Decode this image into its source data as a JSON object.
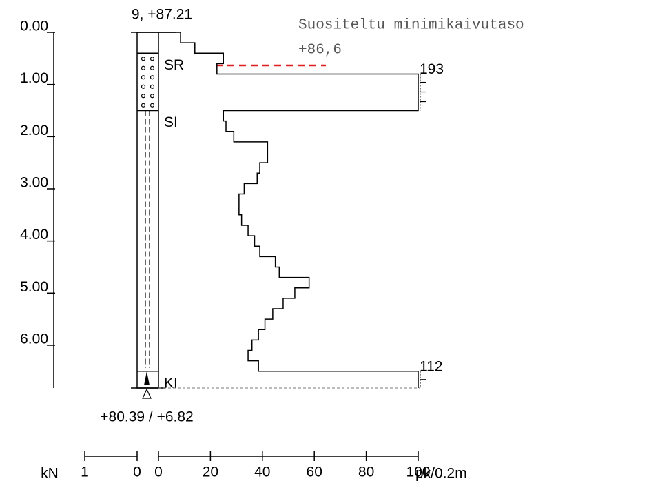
{
  "chart_data": {
    "type": "step",
    "title": "9, +87.21",
    "annotation": "Suositeltu minimikaivutaso",
    "annotation_level": "+86,6",
    "bottom_label": "+80.39 / +6.82",
    "x_label": "pk/0.2m",
    "force_label": "kN",
    "depths": [
      0,
      0.2,
      0.4,
      0.6,
      0.8,
      1.5,
      1.7,
      1.9,
      2.1,
      2.5,
      2.7,
      2.9,
      3.1,
      3.5,
      3.7,
      3.9,
      4.1,
      4.3,
      4.5,
      4.7,
      4.9,
      5.1,
      5.3,
      5.5,
      5.7,
      5.9,
      6.1,
      6.3,
      6.5,
      6.82
    ],
    "values": [
      8.5,
      14,
      25,
      22.5,
      193,
      25,
      26,
      29,
      42,
      39,
      38,
      33,
      31,
      32,
      34.5,
      37,
      39,
      45,
      46.5,
      58,
      52.5,
      48,
      44,
      41,
      38.5,
      36,
      34.5,
      38.5,
      112
    ],
    "xlim": [
      0,
      100
    ],
    "xticks": [
      0,
      20,
      40,
      60,
      80,
      100
    ],
    "force_lim": [
      1,
      0
    ],
    "force_ticks": [
      1,
      0
    ],
    "ylim": [
      0,
      6.82
    ],
    "yticks": [
      {
        "value": 0,
        "label": "0.00"
      },
      {
        "value": 1,
        "label": "1.00"
      },
      {
        "value": 2,
        "label": "2.00"
      },
      {
        "value": 3,
        "label": "3.00"
      },
      {
        "value": 4,
        "label": "4.00"
      },
      {
        "value": 5,
        "label": "5.00"
      },
      {
        "value": 6,
        "label": "6.00"
      }
    ],
    "layers": [
      {
        "name": "SR",
        "top": 0.4,
        "bottom": 1.5
      },
      {
        "name": "SI",
        "top": 1.5,
        "bottom": 6.5
      },
      {
        "name": "KI",
        "top": 6.5,
        "bottom": 6.82
      }
    ]
  }
}
